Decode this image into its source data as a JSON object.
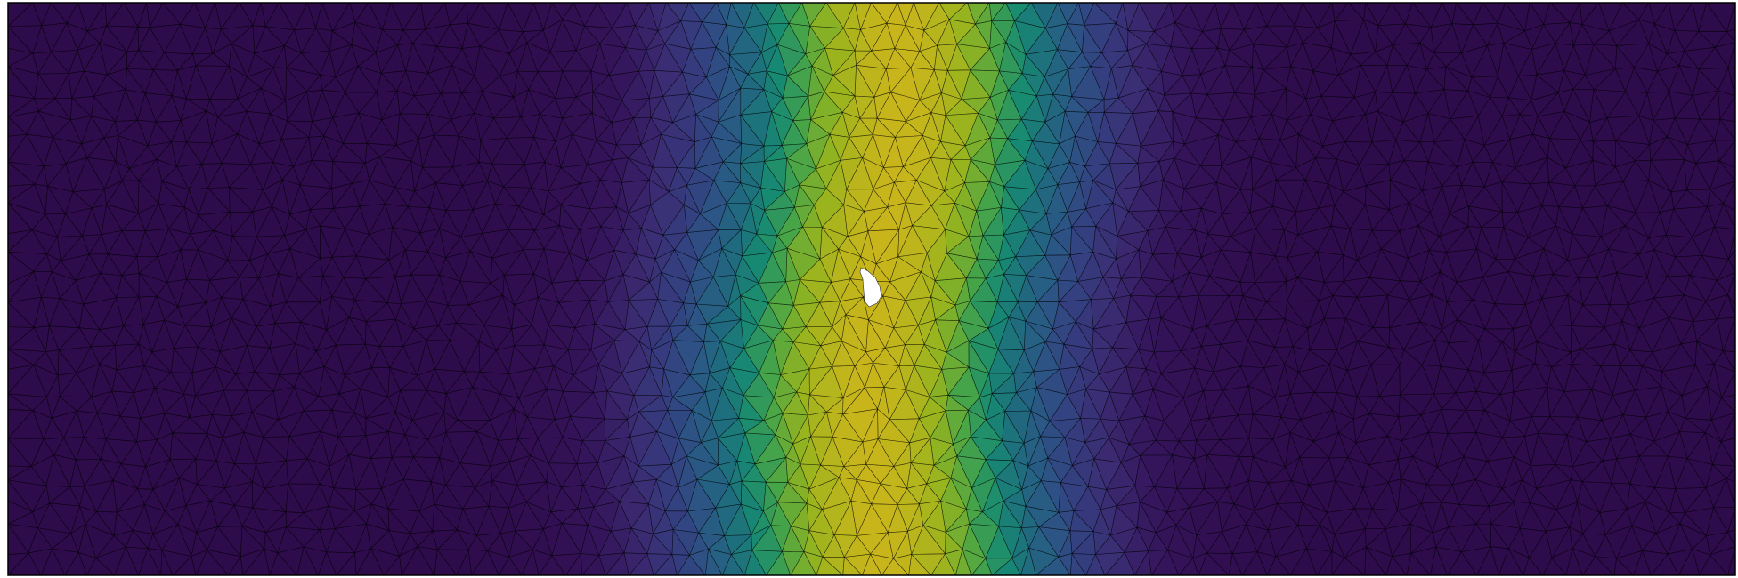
{
  "figure": {
    "kind": "finite-element triangular mesh with scalar field",
    "colormap": "viridis",
    "colormap_stops": [
      "#2e0b4a",
      "#34145a",
      "#3b2c73",
      "#343f80",
      "#2b5785",
      "#1f6c7e",
      "#178a72",
      "#48a547",
      "#97b41e",
      "#c8b51c"
    ],
    "edge_color": "#000000",
    "hole_color": "#ffffff",
    "field_shape": "vertical band peaking near the centre, wavy",
    "border": true,
    "labels_present": false
  }
}
